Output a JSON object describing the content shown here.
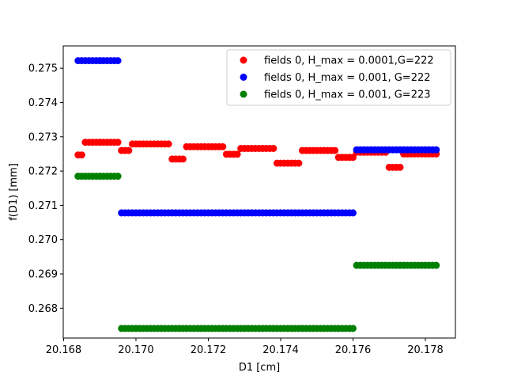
{
  "chart_data": {
    "type": "scatter",
    "title": "",
    "xlabel": "D1 [cm]",
    "ylabel": "f(D1) [mm]",
    "xlim": [
      20.16799,
      20.17883
    ],
    "ylim": [
      0.26713,
      0.27565
    ],
    "x_ticks": [
      20.168,
      20.17,
      20.172,
      20.174,
      20.176,
      20.178
    ],
    "x_tick_labels": [
      "20.168",
      "20.170",
      "20.172",
      "20.174",
      "20.176",
      "20.178"
    ],
    "y_ticks": [
      0.268,
      0.269,
      0.27,
      0.271,
      0.272,
      0.273,
      0.274,
      0.275
    ],
    "y_tick_labels": [
      "0.268",
      "0.269",
      "0.270",
      "0.271",
      "0.272",
      "0.273",
      "0.274",
      "0.275"
    ],
    "grid": false,
    "legend_position": "top-right",
    "x_range": {
      "start": 20.1684,
      "stop": 20.1783,
      "step": 0.0001
    },
    "series": [
      {
        "name": "fields 0, H_max = 0.0001,G=222",
        "color": "#ff0000",
        "segments": [
          {
            "x_from": 20.1684,
            "x_to": 20.1685,
            "y": 0.27247
          },
          {
            "x_from": 20.1686,
            "x_to": 20.1695,
            "y": 0.27284
          },
          {
            "x_from": 20.1696,
            "x_to": 20.1698,
            "y": 0.2726
          },
          {
            "x_from": 20.1699,
            "x_to": 20.1709,
            "y": 0.27279
          },
          {
            "x_from": 20.171,
            "x_to": 20.1713,
            "y": 0.27235
          },
          {
            "x_from": 20.1714,
            "x_to": 20.1724,
            "y": 0.27271
          },
          {
            "x_from": 20.1725,
            "x_to": 20.1728,
            "y": 0.27249
          },
          {
            "x_from": 20.1729,
            "x_to": 20.1738,
            "y": 0.27266
          },
          {
            "x_from": 20.1739,
            "x_to": 20.1745,
            "y": 0.27223
          },
          {
            "x_from": 20.1746,
            "x_to": 20.1755,
            "y": 0.2726
          },
          {
            "x_from": 20.1756,
            "x_to": 20.176,
            "y": 0.2724
          },
          {
            "x_from": 20.1761,
            "x_to": 20.1769,
            "y": 0.27255
          },
          {
            "x_from": 20.177,
            "x_to": 20.1773,
            "y": 0.27211
          },
          {
            "x_from": 20.1774,
            "x_to": 20.1783,
            "y": 0.2725
          }
        ]
      },
      {
        "name": "fields 0, H_max = 0.001, G=222",
        "color": "#0000ff",
        "segments": [
          {
            "x_from": 20.1684,
            "x_to": 20.1695,
            "y": 0.27522
          },
          {
            "x_from": 20.1696,
            "x_to": 20.176,
            "y": 0.27078
          },
          {
            "x_from": 20.1761,
            "x_to": 20.1783,
            "y": 0.27262
          }
        ]
      },
      {
        "name": "fields 0, H_max = 0.001, G=223",
        "color": "#008000",
        "segments": [
          {
            "x_from": 20.1684,
            "x_to": 20.1695,
            "y": 0.27185
          },
          {
            "x_from": 20.1696,
            "x_to": 20.176,
            "y": 0.26741
          },
          {
            "x_from": 20.1761,
            "x_to": 20.1783,
            "y": 0.26925
          }
        ]
      }
    ]
  }
}
